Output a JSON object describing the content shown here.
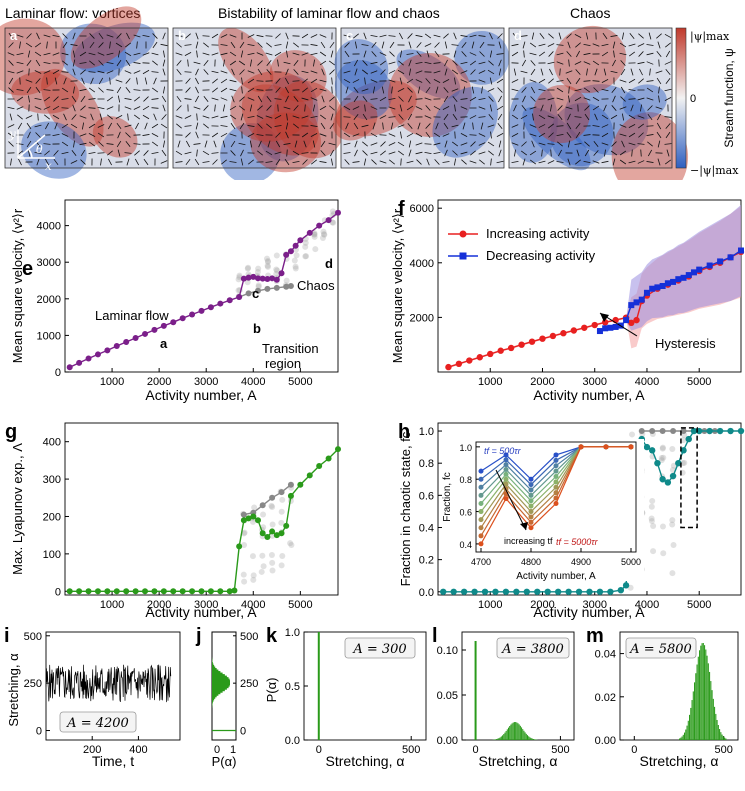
{
  "top": {
    "titles": [
      "Laminar flow: vortices",
      "Bistability of laminar flow and chaos",
      "Chaos"
    ],
    "panel_letters": [
      "a",
      "b",
      "c",
      "d"
    ],
    "colorbar": {
      "top": "|ψ|max",
      "mid": "0",
      "bottom": "−|ψ|max",
      "label": "Stream function, ψ",
      "colors": [
        "#c0392b",
        "#f2f2f2",
        "#2e5fc0"
      ]
    },
    "axes_glyph": {
      "y": "y",
      "x": "x",
      "theta": "θ"
    }
  },
  "panel_e": {
    "letter": "e",
    "ylabel": "Mean square velocity, ⟨v²⟩r",
    "xlabel": "Activity number,  A",
    "annotations": [
      "Laminar flow",
      "a",
      "b",
      "c",
      "d",
      "Chaos",
      "Transition",
      "region"
    ],
    "chart_data": {
      "type": "scatter",
      "xlim": [
        0,
        5800
      ],
      "ylim": [
        0,
        4700
      ],
      "xticks": [
        1000,
        2000,
        3000,
        4000,
        5000
      ],
      "yticks": [
        0,
        1000,
        2000,
        3000,
        4000
      ],
      "series": [
        {
          "name": "mean",
          "color": "#7b1f8a",
          "x": [
            100,
            300,
            500,
            700,
            900,
            1100,
            1300,
            1500,
            1700,
            1900,
            2100,
            2300,
            2500,
            2700,
            2900,
            3100,
            3300,
            3500,
            3700,
            3800,
            3900,
            4000,
            4100,
            4200,
            4300,
            4400,
            4500,
            4600,
            4700,
            4800,
            4900,
            5000,
            5200,
            5400,
            5600,
            5800
          ],
          "y": [
            130,
            250,
            370,
            480,
            590,
            710,
            820,
            930,
            1040,
            1150,
            1260,
            1360,
            1470,
            1570,
            1670,
            1770,
            1870,
            1960,
            2050,
            2550,
            2580,
            2600,
            2560,
            2550,
            2540,
            2560,
            2520,
            2700,
            3200,
            3300,
            3450,
            3600,
            3800,
            4000,
            4150,
            4350
          ]
        },
        {
          "name": "laminar branch",
          "color": "#888888",
          "x": [
            3700,
            3900,
            4100,
            4300,
            4500,
            4700,
            4800
          ],
          "y": [
            2050,
            2150,
            2220,
            2270,
            2300,
            2330,
            2350
          ]
        }
      ]
    }
  },
  "panel_f": {
    "letter": "f",
    "ylabel": "Mean square velocity, ⟨v²⟩r",
    "xlabel": "Activity number,  A",
    "legend": [
      "Increasing activity",
      "Decreasing activity"
    ],
    "annotation": "Hysteresis",
    "chart_data": {
      "type": "line",
      "xlim": [
        0,
        5800
      ],
      "ylim": [
        0,
        6300
      ],
      "xticks": [
        1000,
        2000,
        3000,
        4000,
        5000
      ],
      "yticks": [
        2000,
        4000,
        6000
      ],
      "series": [
        {
          "name": "Increasing activity",
          "color": "#e82020",
          "x": [
            200,
            400,
            600,
            800,
            1000,
            1200,
            1400,
            1600,
            1800,
            2000,
            2200,
            2400,
            2600,
            2800,
            3000,
            3200,
            3400,
            3600,
            3700,
            3800,
            3900,
            4000,
            4200,
            4400,
            4600,
            4800,
            5000,
            5200,
            5400,
            5600,
            5800
          ],
          "y": [
            180,
            300,
            420,
            540,
            660,
            780,
            880,
            1000,
            1110,
            1220,
            1320,
            1420,
            1520,
            1620,
            1720,
            1820,
            1900,
            1990,
            1800,
            1900,
            2600,
            2800,
            3050,
            3200,
            3350,
            3500,
            3700,
            3850,
            4000,
            4200,
            4400
          ]
        },
        {
          "name": "Decreasing activity",
          "color": "#1530d8",
          "x": [
            3100,
            3200,
            3300,
            3400,
            3500,
            3600,
            3700,
            3800,
            3900,
            4000,
            4100,
            4200,
            4300,
            4400,
            4500,
            4600,
            4700,
            4800,
            4900,
            5000,
            5200,
            5400,
            5600,
            5800
          ],
          "y": [
            1500,
            1600,
            1620,
            1650,
            1700,
            1900,
            2450,
            2550,
            2650,
            2900,
            3050,
            3100,
            3150,
            3250,
            3300,
            3400,
            3450,
            3550,
            3650,
            3750,
            3900,
            4050,
            4200,
            4450
          ]
        }
      ]
    }
  },
  "panel_g": {
    "letter": "g",
    "ylabel": "Max. Lyapunov exp.,  Λ",
    "xlabel": "Activity number,  A",
    "chart_data": {
      "type": "line",
      "xlim": [
        0,
        5800
      ],
      "ylim": [
        -10,
        450
      ],
      "xticks": [
        1000,
        2000,
        3000,
        4000,
        5000
      ],
      "yticks": [
        0,
        100,
        200,
        300,
        400
      ],
      "series": [
        {
          "name": "mean",
          "color": "#2a9a1a",
          "x": [
            100,
            300,
            500,
            700,
            900,
            1100,
            1300,
            1500,
            1700,
            1900,
            2100,
            2300,
            2500,
            2700,
            2900,
            3100,
            3300,
            3500,
            3600,
            3700,
            3800,
            3900,
            4000,
            4100,
            4200,
            4300,
            4400,
            4500,
            4600,
            4700,
            4800,
            5000,
            5200,
            5400,
            5600,
            5800
          ],
          "y": [
            0,
            0,
            0,
            0,
            0,
            0,
            0,
            0,
            0,
            0,
            0,
            0,
            0,
            0,
            0,
            0,
            0,
            0,
            2,
            120,
            190,
            195,
            200,
            190,
            155,
            145,
            160,
            150,
            155,
            175,
            255,
            285,
            310,
            335,
            355,
            380
          ]
        },
        {
          "name": "chaotic branch",
          "color": "#888888",
          "x": [
            3800,
            4000,
            4200,
            4400,
            4600,
            4800
          ],
          "y": [
            205,
            210,
            230,
            250,
            265,
            285
          ]
        }
      ]
    }
  },
  "panel_h": {
    "letter": "h",
    "ylabel": "Fraction in chaotic state,  fc",
    "xlabel": "Activity number,  A",
    "inset": {
      "ylabel": "Fraction, fc",
      "xlabel": "Activity number,  A",
      "xticks": [
        4700,
        4800,
        4900,
        5000
      ],
      "yticks": [
        0.4,
        0.6,
        0.8,
        1.0
      ],
      "label_top": "tf = 500τr",
      "label_bottom": "tf = 5000τr",
      "arrow_label": "increasing tf"
    },
    "chart_data": {
      "type": "line",
      "xlim": [
        0,
        5800
      ],
      "ylim": [
        -0.02,
        1.05
      ],
      "xticks": [
        1000,
        2000,
        3000,
        4000,
        5000
      ],
      "yticks": [
        0.0,
        0.2,
        0.4,
        0.6,
        0.8,
        1.0
      ],
      "series": [
        {
          "name": "mean",
          "color": "#0f8a8a",
          "x": [
            100,
            300,
            500,
            700,
            900,
            1100,
            1300,
            1500,
            1700,
            1900,
            2100,
            2300,
            2500,
            2700,
            2900,
            3100,
            3300,
            3500,
            3600,
            3700,
            3800,
            3900,
            4000,
            4100,
            4200,
            4300,
            4400,
            4500,
            4600,
            4700,
            4800,
            4900,
            5000,
            5200,
            5400,
            5600,
            5800
          ],
          "y": [
            0,
            0,
            0,
            0,
            0,
            0,
            0,
            0,
            0,
            0,
            0,
            0,
            0,
            0,
            0,
            0,
            0,
            0.01,
            0.04,
            0.65,
            0.92,
            0.95,
            0.9,
            0.88,
            0.8,
            0.7,
            0.68,
            0.72,
            0.8,
            0.88,
            0.95,
            1,
            1,
            1,
            1,
            1,
            1
          ]
        }
      ]
    }
  },
  "panel_i": {
    "letter": "i",
    "ylabel": "Stretching,  α",
    "xlabel": "Time,  t",
    "box": "A = 4200",
    "chart_data": {
      "type": "line",
      "xlim": [
        0,
        580
      ],
      "ylim": [
        -50,
        520
      ],
      "xticks": [
        200,
        400
      ],
      "yticks": [
        0,
        250,
        500
      ],
      "mean": 250
    }
  },
  "panel_j": {
    "letter": "j",
    "xlabel": "P(α)",
    "chart_data": {
      "type": "bar",
      "xticks": [
        "0",
        "1"
      ],
      "yticks": [
        0,
        250,
        500
      ],
      "peak": 250
    }
  },
  "panel_k": {
    "letter": "k",
    "ylabel": "P(α)",
    "xlabel": "Stretching,  α",
    "box": "A = 300",
    "chart_data": {
      "type": "bar",
      "xlim": [
        -80,
        580
      ],
      "ylim": [
        0,
        1.0
      ],
      "xticks": [
        0,
        500
      ],
      "yticks": [
        0.0,
        0.5,
        1.0
      ],
      "spike_at": 0,
      "spike_height": 1.0
    }
  },
  "panel_l": {
    "letter": "l",
    "xlabel": "Stretching,  α",
    "box": "A = 3800",
    "chart_data": {
      "type": "bar",
      "xlim": [
        -80,
        580
      ],
      "ylim": [
        0,
        0.12
      ],
      "xticks": [
        0,
        500
      ],
      "yticks": [
        0.0,
        0.05,
        0.1
      ],
      "spike_at": 0,
      "spike_height": 0.11,
      "gauss_mean": 230,
      "gauss_sd": 45,
      "gauss_peak": 0.02
    }
  },
  "panel_m": {
    "letter": "m",
    "xlabel": "Stretching,  α",
    "box": "A = 5800",
    "chart_data": {
      "type": "bar",
      "xlim": [
        -80,
        580
      ],
      "ylim": [
        0,
        0.05
      ],
      "xticks": [
        0,
        500
      ],
      "yticks": [
        0.0,
        0.02,
        0.04
      ],
      "gauss_mean": 380,
      "gauss_sd": 45,
      "gauss_peak": 0.045
    }
  }
}
